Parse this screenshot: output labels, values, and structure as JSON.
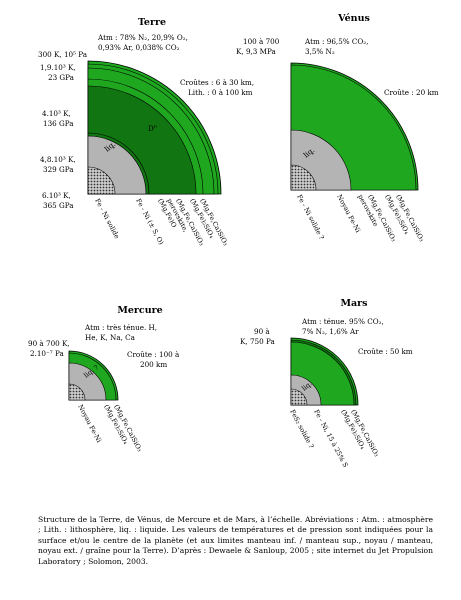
{
  "colors": {
    "green": "#1fa81f",
    "dark_green": "#117511",
    "core": "#b4b4b4",
    "stroke": "#000000"
  },
  "earth": {
    "title": "Terre",
    "atm": [
      "Atm : 78% N₂, 20,9% O₂,",
      "0,93% Ar, 0,038% CO₂"
    ],
    "surface": "300 K, 10⁵ Pa",
    "t1": [
      "1,9.10³ K,",
      "23 GPa"
    ],
    "t2": [
      "4.10³ K,",
      "136 GPa"
    ],
    "t3": [
      "4,8.10³ K,",
      "329 GPa"
    ],
    "t4": [
      "6.10³ K,",
      "365 GPa"
    ],
    "crust": [
      "Croûtes : 6 à 30 km,",
      "Lith. : 0 à 100 km"
    ],
    "dprime": "D\"",
    "liq": "liq.",
    "labels": [
      "Fe - Ni solide",
      "Fe - Ni (± S, O)",
      "(Mg,Fe)O",
      "perovskite,",
      "(Mg,Fe,Ca)SiO₃",
      "(Mg,Fe)₂SiO₄",
      "(Mg,Fe,Ca)SiO₃"
    ]
  },
  "venus": {
    "title": "Vénus",
    "atm": [
      "Atm : 96,5% CO₂,",
      "3,5% N₂"
    ],
    "surface": [
      "100 à 700",
      "K, 9,3 MPa"
    ],
    "crust": "Croûte : 20 km",
    "liq": "liq.",
    "labels": [
      "Fe - Ni solide ?",
      "Noyau Fe-Ni",
      "perovskite",
      "(Mg,Fe,Ca)SiO₃",
      "(Mg,Fe)₂SiO₄",
      "(Mg,Fe,Ca)SiO₃"
    ]
  },
  "mercury": {
    "title": "Mercure",
    "atm": [
      "Atm : très ténue. H,",
      "He, K, Na, Ca"
    ],
    "surface": [
      "90 à 700 K,",
      "2.10⁻⁷ Pa"
    ],
    "crust": [
      "Croûte : 100 à",
      "200 km"
    ],
    "liq": "liq. ?",
    "labels": [
      "Noyau Fe-Ni",
      "(Mg,Fe)₂SiO₄",
      "(Mg,Fe,Ca)SiO₃"
    ]
  },
  "mars": {
    "title": "Mars",
    "atm": [
      "Atm : ténue. 95% CO₂,",
      "7% N₂, 1,6% Ar"
    ],
    "surface": [
      "90 à",
      "K, 750 Pa"
    ],
    "crust": "Croûte : 50 km",
    "liq": "liq.",
    "labels": [
      "FeS₂ solide ?",
      "Fe - Ni, 15 à 25% S",
      "(Mg,Fe)₂SiO₄",
      "(Mg,Fe,Ca)SiO₃"
    ]
  },
  "caption": "Structure de la Terre, de Vénus, de Mercure et de Mars, à l’échelle. Abréviations : Atm. : atmosphère ; Lith. : lithosphère, liq. : liquide. Les valeurs de températures et de pression sont indiquées pour la surface et/ou le centre de la planète (et aux limites manteau inf. / manteau sup., noyau / manteau, noyau ext. / graîne pour la Terre). D’après : Dewaele & Sanloup, 2005 ; site internet du Jet Propulsion Laboratory ; Solomon, 2003."
}
